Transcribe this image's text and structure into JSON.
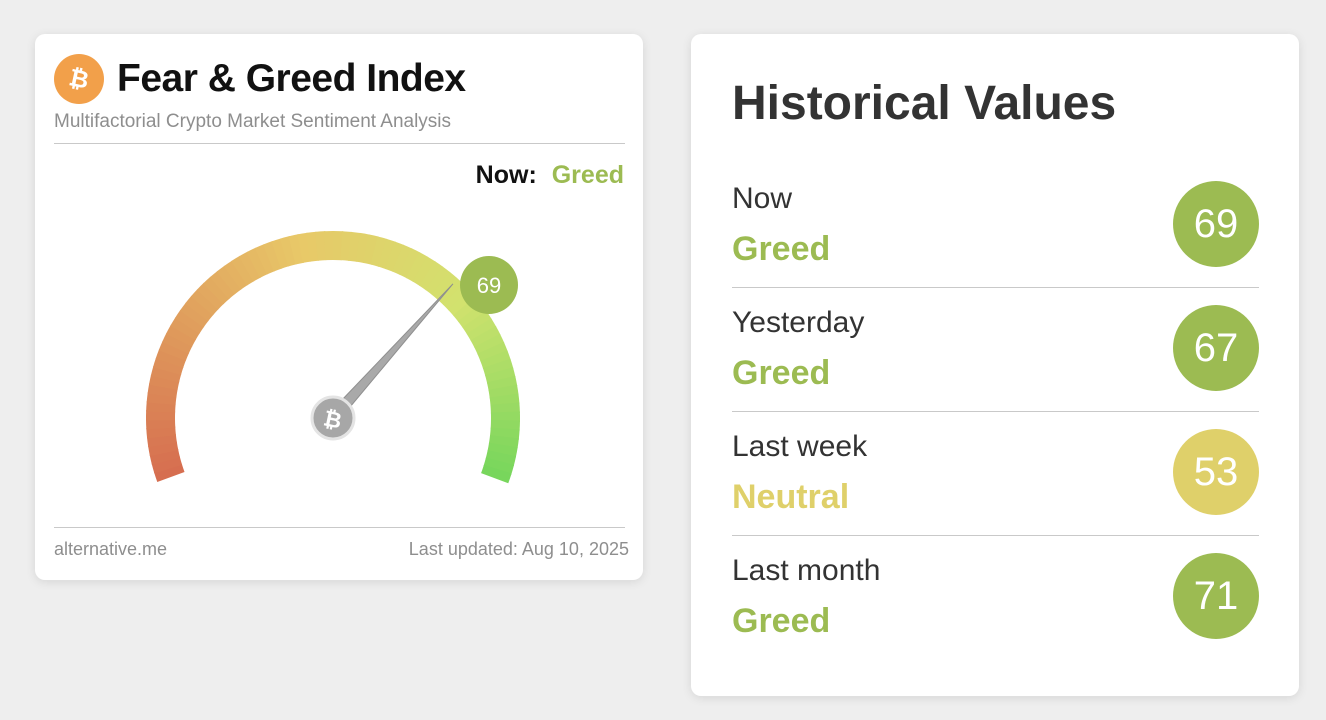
{
  "widget": {
    "title": "Fear & Greed Index",
    "subtitle": "Multifactorial Crypto Market Sentiment Analysis",
    "now_label": "Now:",
    "now_value": "Greed",
    "value": 69,
    "value_text": "69",
    "footer_source": "alternative.me",
    "footer_updated": "Last updated: Aug 10, 2025",
    "icon": "bitcoin-icon"
  },
  "historical": {
    "title": "Historical Values",
    "rows": [
      {
        "period": "Now",
        "classification": "Greed",
        "value": "69",
        "color": "#9cbb52"
      },
      {
        "period": "Yesterday",
        "classification": "Greed",
        "value": "67",
        "color": "#9cbb52"
      },
      {
        "period": "Last week",
        "classification": "Neutral",
        "value": "53",
        "color": "#dfd06a"
      },
      {
        "period": "Last month",
        "classification": "Greed",
        "value": "71",
        "color": "#9cbb52"
      }
    ]
  },
  "colors": {
    "greed": "#9cbb52",
    "neutral": "#dfd06a",
    "bitcoin_orange": "#f2a04a"
  }
}
